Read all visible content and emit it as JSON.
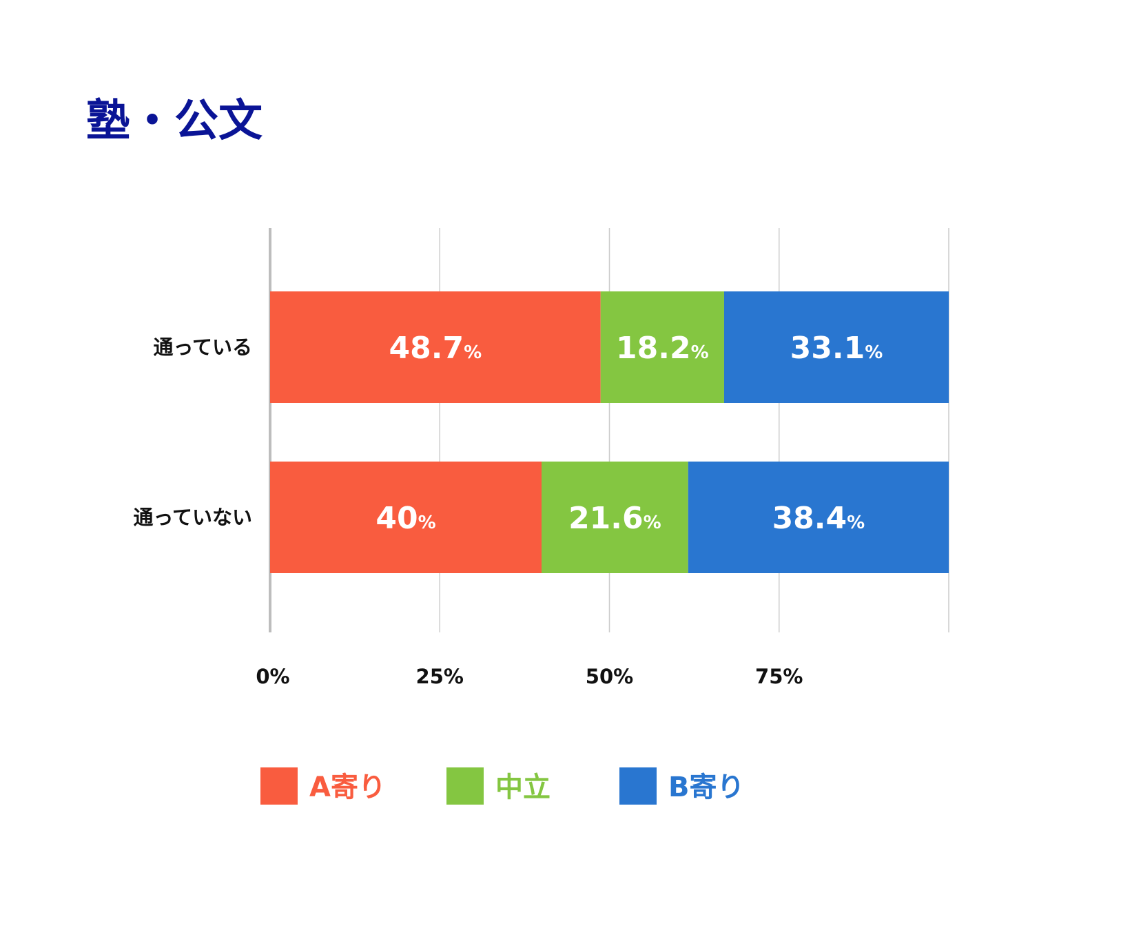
{
  "chart_data": {
    "type": "bar",
    "orientation": "horizontal",
    "stacked": true,
    "title": "塾・公文",
    "title_color": "#0a1496",
    "categories": [
      "通っている",
      "通っていない"
    ],
    "series": [
      {
        "name": "A寄り",
        "color": "#f95c3f",
        "values": [
          48.7,
          40
        ]
      },
      {
        "name": "中立",
        "color": "#84c641",
        "values": [
          18.2,
          21.6
        ]
      },
      {
        "name": "B寄り",
        "color": "#2976d0",
        "values": [
          33.1,
          38.4
        ]
      }
    ],
    "data_labels": [
      [
        "48.7",
        "18.2",
        "33.1"
      ],
      [
        "40",
        "21.6",
        "38.4"
      ]
    ],
    "data_label_unit": "%",
    "xlim": [
      0,
      100
    ],
    "xticks": [
      0,
      25,
      50,
      75
    ],
    "xtick_labels": [
      "0%",
      "25%",
      "50%",
      "75%"
    ],
    "grid": true,
    "legend_position": "bottom"
  }
}
